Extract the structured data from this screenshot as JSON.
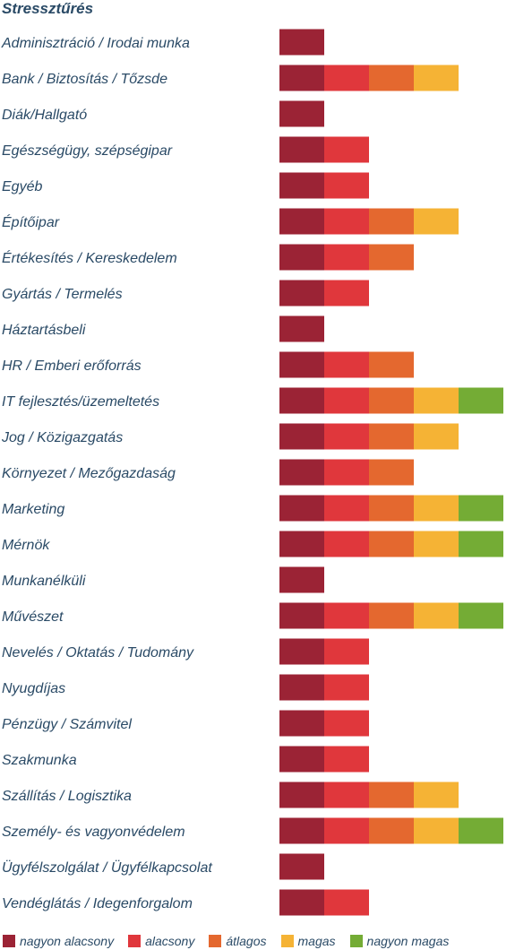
{
  "chart_data": {
    "type": "bar",
    "title": "Stressztűrés",
    "legend_position": "bottom",
    "levels": [
      {
        "name": "nagyon alacsony",
        "color": "#9b2335"
      },
      {
        "name": "alacsony",
        "color": "#e0373c"
      },
      {
        "name": "átlagos",
        "color": "#e4682f"
      },
      {
        "name": "magas",
        "color": "#f5b335"
      },
      {
        "name": "nagyon magas",
        "color": "#74ac35"
      }
    ],
    "categories": [
      "Adminisztráció / Irodai munka",
      "Bank / Biztosítás / Tőzsde",
      "Diák/Hallgató",
      "Egészségügy, szépségipar",
      "Egyéb",
      "Építőipar",
      "Értékesítés / Kereskedelem",
      "Gyártás / Termelés",
      "Háztartásbeli",
      "HR / Emberi erőforrás",
      "IT fejlesztés/üzemeltetés",
      "Jog / Közigazgatás",
      "Környezet / Mezőgazdaság",
      "Marketing",
      "Mérnök",
      "Munkanélküli",
      "Művészet",
      "Nevelés / Oktatás / Tudomány",
      "Nyugdíjas",
      "Pénzügy / Számvitel",
      "Szakmunka",
      "Szállítás / Logisztika",
      "Személy- és vagyonvédelem",
      "Ügyfélszolgálat / Ügyfélkapcsolat",
      "Vendéglátás / Idegenforgalom"
    ],
    "values": [
      1,
      4,
      1,
      2,
      2,
      4,
      3,
      2,
      1,
      3,
      5,
      4,
      3,
      5,
      5,
      1,
      5,
      2,
      2,
      2,
      2,
      4,
      5,
      1,
      2
    ],
    "xlim": [
      0,
      5
    ]
  }
}
